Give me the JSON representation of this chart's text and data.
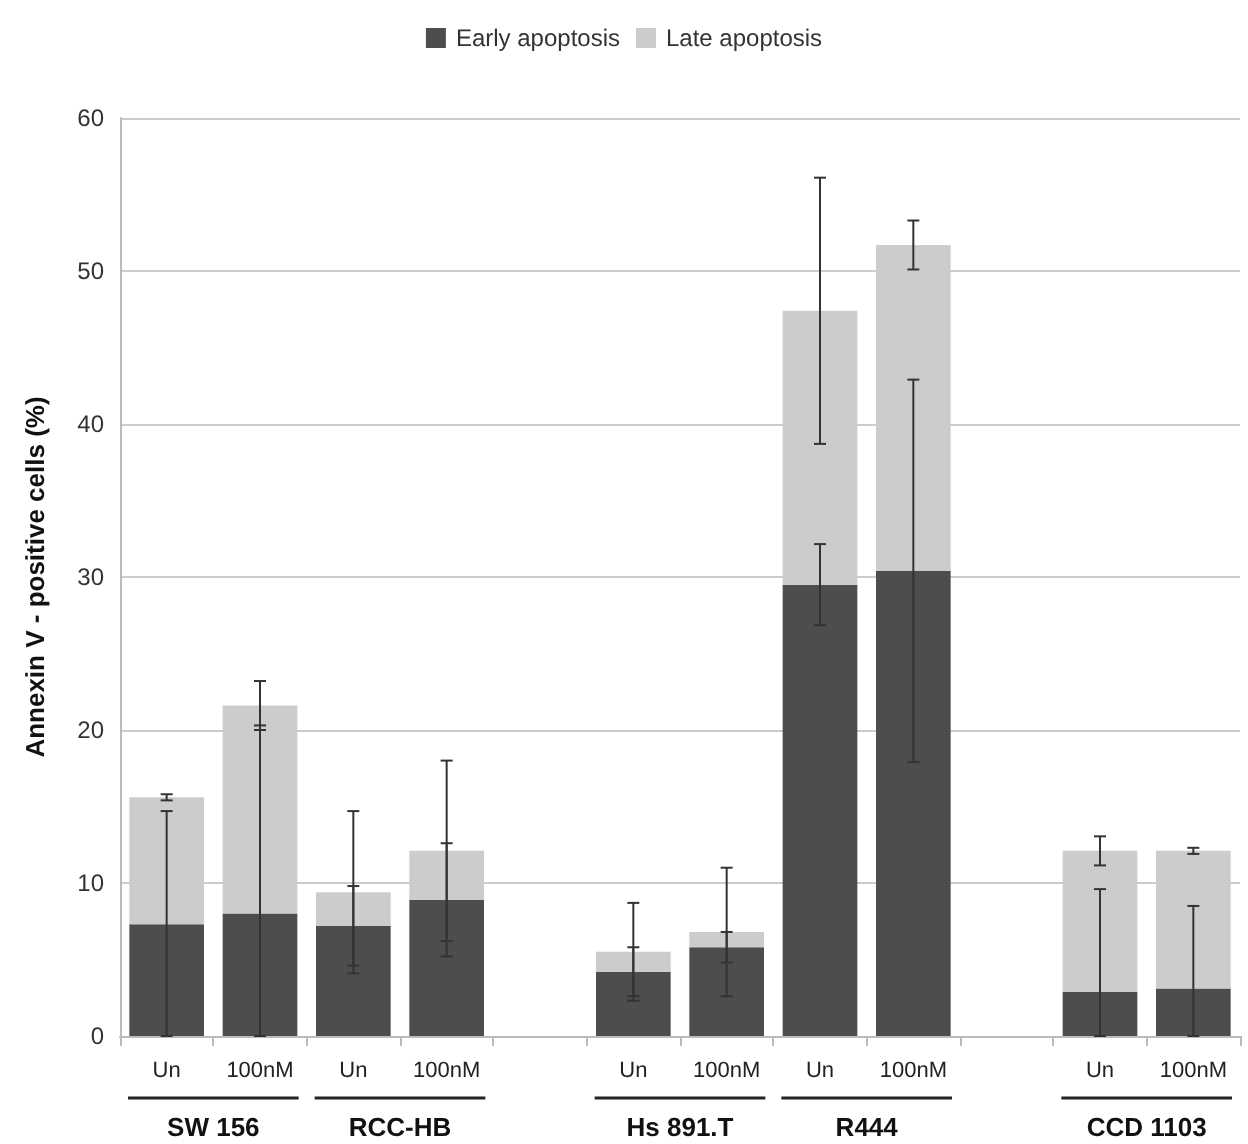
{
  "chart_data": {
    "type": "bar",
    "stacked": true,
    "ylabel": "Annexin V - positive cells (%)",
    "categories": [
      "Un",
      "100nM",
      "Un",
      "100nM",
      null,
      "Un",
      "100nM",
      "Un",
      "100nM",
      null,
      "Un",
      "100nM"
    ],
    "series": [
      {
        "name": "Early apoptosis",
        "color": "#4d4d4d",
        "values": [
          7.3,
          8.0,
          7.2,
          8.9,
          null,
          4.2,
          5.8,
          29.5,
          30.4,
          null,
          2.9,
          3.1
        ],
        "errors": [
          [
            0,
            14.7
          ],
          [
            0,
            20.3
          ],
          2.6,
          3.7,
          null,
          1.6,
          1.0,
          2.65,
          12.5,
          null,
          [
            0,
            9.6
          ],
          [
            0,
            8.5
          ]
        ]
      },
      {
        "name": "Late apoptosis",
        "color": "#cccccc",
        "values": [
          8.3,
          13.6,
          2.2,
          3.2,
          null,
          1.3,
          1.0,
          17.9,
          21.3,
          null,
          9.2,
          9.0
        ],
        "errors": [
          0.2,
          1.6,
          5.3,
          5.9,
          null,
          3.2,
          4.2,
          8.7,
          1.6,
          null,
          0.95,
          0.2
        ]
      }
    ],
    "annotations": [
      "SW 156",
      "RCC-HB",
      "Hs 891.T",
      "R444",
      "CCD 1103"
    ],
    "ylim": [
      0,
      60
    ],
    "yticks": [
      0,
      10,
      20,
      30,
      40,
      50,
      60
    ],
    "grid": "y",
    "legend": "top"
  }
}
